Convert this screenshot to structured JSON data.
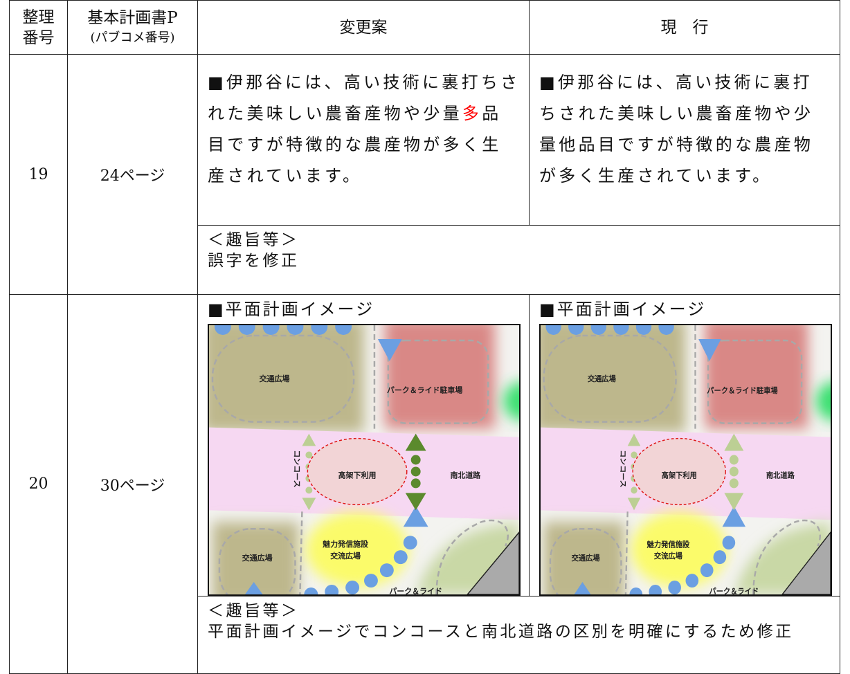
{
  "header": {
    "number": [
      "整理",
      "番号"
    ],
    "page": [
      "基本計画書P",
      "(パブコメ番号)"
    ],
    "proposed": "変更案",
    "current": "現　行"
  },
  "rows": [
    {
      "number": "19",
      "page": "24ページ",
      "proposed": {
        "before": "■伊那谷には、高い技術に裏打ちされた美味しい農畜産物や少量",
        "emphasis": "多",
        "emphasis_color": "#ff0000",
        "after": "品目ですが特徴的な農産物が多く生産されています。"
      },
      "current": {
        "text": "■伊那谷には、高い技術に裏打ちされた美味しい農畜産物や少量他品目ですが特徴的な農産物が多く生産されています。"
      },
      "purpose": {
        "heading": "＜趣旨等＞",
        "text": "誤字を修正"
      }
    },
    {
      "number": "20",
      "page": "30ページ",
      "proposed": {
        "heading": "■平面計画イメージ",
        "map": {
          "labels": [
            "交通広場",
            "パーク＆ライド駐車場",
            "コンコース",
            "高架下利用",
            "南北道路",
            "魅力発信施設",
            "交流広場",
            "交通広場",
            "パーク＆ライド"
          ],
          "road_arrow_color": "#5b8a2d"
        }
      },
      "current": {
        "heading": "■平面計画イメージ",
        "map": {
          "labels": [
            "交通広場",
            "パーク＆ライド駐車場",
            "コンコース",
            "高架下利用",
            "南北道路",
            "魅力発信施設",
            "交流広場",
            "交通広場",
            "パーク＆ライド"
          ],
          "road_arrow_color": "#bccf94"
        }
      },
      "purpose": {
        "heading": "＜趣旨等＞",
        "text": "平面計画イメージでコンコースと南北道路の区別を明確にするため修正"
      }
    }
  ]
}
